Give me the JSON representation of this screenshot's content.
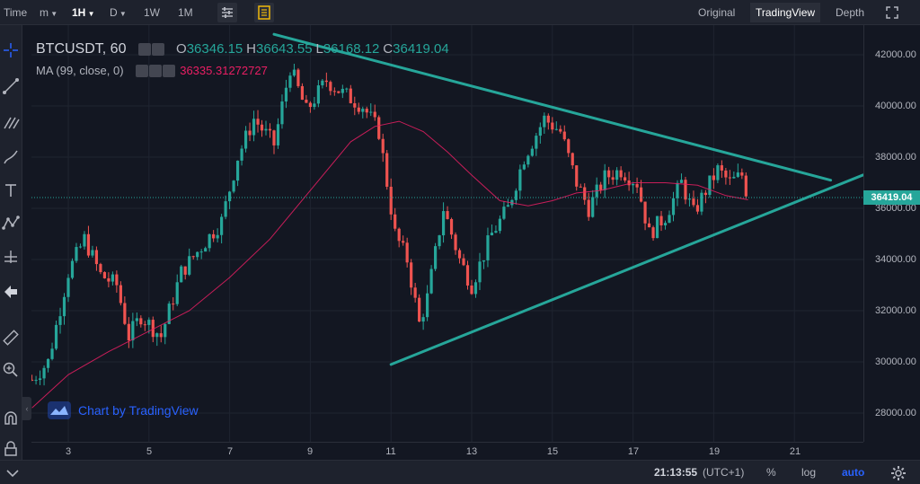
{
  "topbar": {
    "time_label": "Time",
    "intervals": [
      "m",
      "1H",
      "D",
      "1W",
      "1M"
    ],
    "active_interval": "1H",
    "views": [
      "Original",
      "TradingView",
      "Depth"
    ],
    "active_view": "TradingView"
  },
  "legend": {
    "symbol": "BTCUSDT, 60",
    "open_label": "O",
    "open": "36346.15",
    "high_label": "H",
    "high": "36643.55",
    "low_label": "L",
    "low": "36168.12",
    "close_label": "C",
    "close": "36419.04",
    "ma_label": "MA (99, close, 0)",
    "ma_value": "36335.31272727"
  },
  "price_axis": {
    "ticks": [
      "42000.00",
      "40000.00",
      "38000.00",
      "36000.00",
      "34000.00",
      "32000.00",
      "30000.00",
      "28000.00"
    ],
    "last_price": "36419.04"
  },
  "time_axis": {
    "ticks": [
      "3",
      "5",
      "7",
      "9",
      "11",
      "13",
      "15",
      "17",
      "19",
      "21"
    ]
  },
  "watermark": "Chart by TradingView",
  "bottombar": {
    "clock": "21:13:55",
    "timezone": "(UTC+1)",
    "percent": "%",
    "log": "log",
    "auto": "auto"
  },
  "colors": {
    "up": "#26a69a",
    "down": "#ef5350",
    "ma": "#e91e63",
    "trendline": "#26a69a",
    "background": "#131722"
  },
  "chart_data": {
    "type": "candlestick",
    "symbol": "BTCUSDT",
    "interval": "60",
    "ylim": [
      27000,
      43000
    ],
    "x_ticks": [
      "3",
      "5",
      "7",
      "9",
      "11",
      "13",
      "15",
      "17",
      "19",
      "21"
    ],
    "y_ticks": [
      28000,
      30000,
      32000,
      34000,
      36000,
      38000,
      40000,
      42000
    ],
    "last": {
      "open": 36346.15,
      "high": 36643.55,
      "low": 36168.12,
      "close": 36419.04
    },
    "ma": {
      "period": 99,
      "value": 36335.31272727
    },
    "price_path": [
      [
        2.1,
        29300
      ],
      [
        2.5,
        30000
      ],
      [
        3.0,
        33500
      ],
      [
        3.4,
        34800
      ],
      [
        3.8,
        33400
      ],
      [
        4.2,
        33000
      ],
      [
        4.5,
        31000
      ],
      [
        4.8,
        31800
      ],
      [
        5.3,
        31000
      ],
      [
        5.8,
        33500
      ],
      [
        6.3,
        34500
      ],
      [
        6.8,
        35500
      ],
      [
        7.2,
        38000
      ],
      [
        7.6,
        39500
      ],
      [
        8.1,
        38500
      ],
      [
        8.5,
        41500
      ],
      [
        8.9,
        39800
      ],
      [
        9.4,
        41000
      ],
      [
        9.8,
        40500
      ],
      [
        10.3,
        40000
      ],
      [
        10.7,
        39000
      ],
      [
        11.1,
        35000
      ],
      [
        11.4,
        34000
      ],
      [
        11.7,
        31500
      ],
      [
        11.9,
        32500
      ],
      [
        12.3,
        36000
      ],
      [
        12.7,
        34000
      ],
      [
        13.0,
        33000
      ],
      [
        13.5,
        35000
      ],
      [
        13.9,
        36000
      ],
      [
        14.3,
        38000
      ],
      [
        14.8,
        39500
      ],
      [
        15.2,
        39000
      ],
      [
        15.6,
        37000
      ],
      [
        15.9,
        36000
      ],
      [
        16.3,
        37200
      ],
      [
        16.7,
        37500
      ],
      [
        17.1,
        37000
      ],
      [
        17.4,
        35000
      ],
      [
        17.8,
        35700
      ],
      [
        18.2,
        37000
      ],
      [
        18.5,
        35800
      ],
      [
        18.8,
        36700
      ],
      [
        19.1,
        37500
      ],
      [
        19.4,
        37000
      ],
      [
        19.7,
        37300
      ],
      [
        19.85,
        36419
      ]
    ],
    "ma_path": [
      [
        2.1,
        28200
      ],
      [
        3.0,
        29500
      ],
      [
        4.0,
        30400
      ],
      [
        5.0,
        31200
      ],
      [
        6.0,
        32000
      ],
      [
        7.0,
        33300
      ],
      [
        8.0,
        34800
      ],
      [
        9.0,
        36700
      ],
      [
        10.0,
        38600
      ],
      [
        10.6,
        39200
      ],
      [
        11.2,
        39400
      ],
      [
        11.8,
        39000
      ],
      [
        12.4,
        38200
      ],
      [
        13.0,
        37300
      ],
      [
        13.7,
        36300
      ],
      [
        14.4,
        36100
      ],
      [
        15.0,
        36300
      ],
      [
        15.6,
        36600
      ],
      [
        16.2,
        36700
      ],
      [
        17.0,
        37000
      ],
      [
        17.8,
        37000
      ],
      [
        18.6,
        36900
      ],
      [
        19.3,
        36500
      ],
      [
        19.85,
        36335
      ]
    ],
    "trendlines": [
      {
        "name": "upper",
        "points": [
          [
            8.1,
            42800
          ],
          [
            21.9,
            37100
          ]
        ]
      },
      {
        "name": "lower",
        "points": [
          [
            11.0,
            29900
          ],
          [
            22.7,
            37300
          ]
        ]
      }
    ]
  }
}
